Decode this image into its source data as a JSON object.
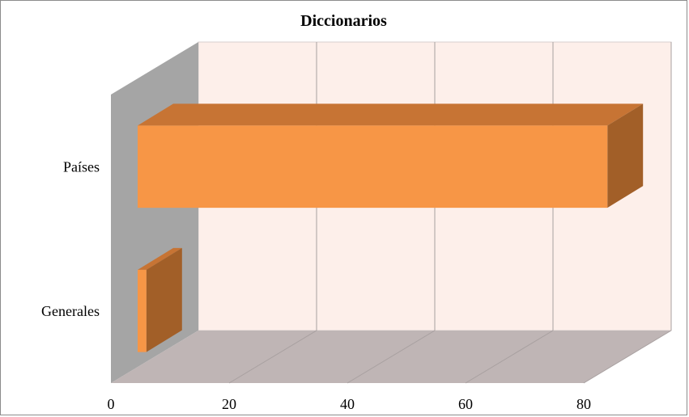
{
  "chart_data": {
    "type": "bar",
    "orientation": "horizontal",
    "style": "3d",
    "title": "Diccionarios",
    "categories": [
      "Países",
      "Generales"
    ],
    "values": [
      84,
      6
    ],
    "xlabel": "",
    "ylabel": "",
    "xlim": [
      0,
      80
    ],
    "x_ticks": [
      "0",
      "20",
      "40",
      "60",
      "80"
    ],
    "grid": true,
    "legend": "none",
    "colors": {
      "bar_front": "#F79646",
      "bar_top": "#C77434",
      "bar_side": "#A25F28",
      "back_wall": "#FDEFEA",
      "side_wall": "#A5A5A5",
      "floor": "#BFB5B5",
      "grid": "#A8A0A0"
    }
  }
}
